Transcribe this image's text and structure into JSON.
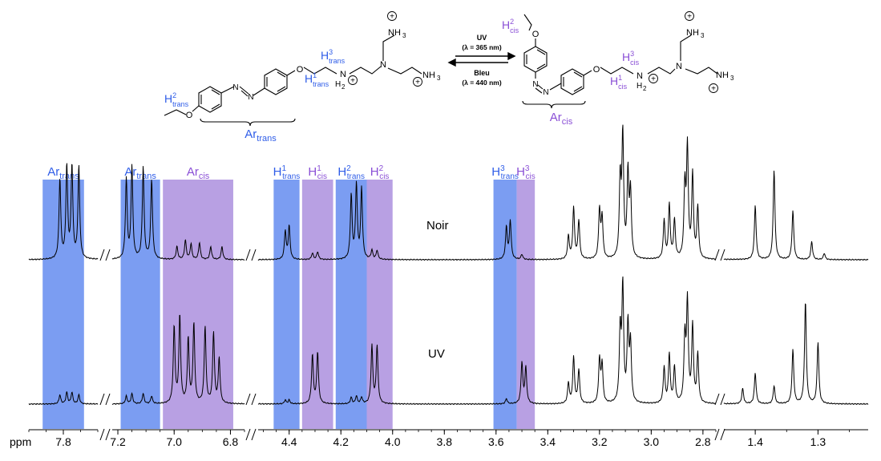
{
  "colors": {
    "trans": "#7b9df2",
    "cis": "#b8a0e3",
    "trans_text": "#2f5de8",
    "cis_text": "#8a4fd6",
    "spectrum": "#000000"
  },
  "scheme": {
    "arrow_top": "UV",
    "arrow_top_wavelength": "(λ = 365 nm)",
    "arrow_bottom": "Bleu",
    "arrow_bottom_wavelength": "(λ = 440 nm)",
    "trans_molecule": {
      "ar_base": "Ar",
      "ar_sub": "trans",
      "h1": {
        "base": "H",
        "sup": "1",
        "sub": "trans"
      },
      "h2": {
        "base": "H",
        "sup": "2",
        "sub": "trans"
      },
      "h3": {
        "base": "H",
        "sup": "3",
        "sub": "trans"
      },
      "nh2": "N",
      "nh2_h": "H",
      "nh2_sub": "2",
      "n": "N",
      "nh3_top": "NH",
      "nh3_bottom": "NH",
      "nh3_sub": "3",
      "o": "O",
      "azo": "N"
    },
    "cis_molecule": {
      "ar_base": "Ar",
      "ar_sub": "cis",
      "h1": {
        "base": "H",
        "sup": "1",
        "sub": "cis"
      },
      "h2": {
        "base": "H",
        "sup": "2",
        "sub": "cis"
      },
      "h3": {
        "base": "H",
        "sup": "3",
        "sub": "cis"
      },
      "nh2": "N",
      "nh2_h": "H",
      "nh2_sub": "2",
      "n": "N",
      "nh3_top": "NH",
      "nh3_bottom": "NH",
      "nh3_sub": "3",
      "o": "O",
      "azo": "N"
    },
    "plus": "+"
  },
  "chart_data": {
    "type": "line",
    "xlabel": "ppm",
    "x_reversed": true,
    "axis_breaks": [
      [
        7.7,
        7.2
      ],
      [
        6.75,
        4.5
      ],
      [
        2.75,
        1.45
      ]
    ],
    "x_tick_labels": [
      "7.8",
      "7.2",
      "7.0",
      "6.8",
      "4.4",
      "4.2",
      "4.0",
      "3.8",
      "3.6",
      "3.4",
      "3.2",
      "3.0",
      "2.8",
      "1.4",
      "1.3"
    ],
    "x_ticks": [
      7.8,
      7.2,
      7.0,
      6.8,
      4.4,
      4.2,
      4.0,
      3.8,
      3.6,
      3.4,
      3.2,
      3.0,
      2.8,
      1.4,
      1.3
    ],
    "series": [
      {
        "name": "Noir",
        "peaks": [
          {
            "ppm": 7.81,
            "h": 0.62
          },
          {
            "ppm": 7.79,
            "h": 0.72
          },
          {
            "ppm": 7.775,
            "h": 0.72
          },
          {
            "ppm": 7.755,
            "h": 0.72
          },
          {
            "ppm": 7.17,
            "h": 0.62
          },
          {
            "ppm": 7.15,
            "h": 0.72
          },
          {
            "ppm": 7.11,
            "h": 0.72
          },
          {
            "ppm": 7.08,
            "h": 0.62
          },
          {
            "ppm": 6.99,
            "h": 0.1
          },
          {
            "ppm": 6.96,
            "h": 0.15
          },
          {
            "ppm": 6.94,
            "h": 0.12
          },
          {
            "ppm": 6.91,
            "h": 0.13
          },
          {
            "ppm": 6.87,
            "h": 0.1
          },
          {
            "ppm": 6.83,
            "h": 0.1
          },
          {
            "ppm": 4.415,
            "h": 0.22
          },
          {
            "ppm": 4.4,
            "h": 0.26
          },
          {
            "ppm": 4.31,
            "h": 0.05
          },
          {
            "ppm": 4.29,
            "h": 0.06
          },
          {
            "ppm": 4.16,
            "h": 0.5
          },
          {
            "ppm": 4.14,
            "h": 0.58
          },
          {
            "ppm": 4.12,
            "h": 0.55
          },
          {
            "ppm": 4.08,
            "h": 0.07
          },
          {
            "ppm": 4.06,
            "h": 0.07
          },
          {
            "ppm": 3.56,
            "h": 0.25
          },
          {
            "ppm": 3.545,
            "h": 0.3
          },
          {
            "ppm": 3.5,
            "h": 0.04
          },
          {
            "ppm": 3.32,
            "h": 0.18
          },
          {
            "ppm": 3.3,
            "h": 0.4
          },
          {
            "ppm": 3.28,
            "h": 0.3
          },
          {
            "ppm": 3.2,
            "h": 0.38
          },
          {
            "ppm": 3.19,
            "h": 0.32
          },
          {
            "ppm": 3.12,
            "h": 0.6
          },
          {
            "ppm": 3.11,
            "h": 0.95
          },
          {
            "ppm": 3.09,
            "h": 0.65
          },
          {
            "ppm": 3.08,
            "h": 0.5
          },
          {
            "ppm": 2.95,
            "h": 0.3
          },
          {
            "ppm": 2.93,
            "h": 0.42
          },
          {
            "ppm": 2.91,
            "h": 0.3
          },
          {
            "ppm": 2.87,
            "h": 0.55
          },
          {
            "ppm": 2.86,
            "h": 0.85
          },
          {
            "ppm": 2.84,
            "h": 0.65
          },
          {
            "ppm": 2.82,
            "h": 0.4
          },
          {
            "ppm": 1.4,
            "h": 0.42
          },
          {
            "ppm": 1.37,
            "h": 0.7
          },
          {
            "ppm": 1.34,
            "h": 0.38
          },
          {
            "ppm": 1.31,
            "h": 0.14
          },
          {
            "ppm": 1.29,
            "h": 0.05
          }
        ]
      },
      {
        "name": "UV",
        "peaks": [
          {
            "ppm": 7.81,
            "h": 0.07
          },
          {
            "ppm": 7.79,
            "h": 0.09
          },
          {
            "ppm": 7.775,
            "h": 0.09
          },
          {
            "ppm": 7.755,
            "h": 0.07
          },
          {
            "ppm": 7.17,
            "h": 0.06
          },
          {
            "ppm": 7.15,
            "h": 0.08
          },
          {
            "ppm": 7.11,
            "h": 0.08
          },
          {
            "ppm": 7.08,
            "h": 0.06
          },
          {
            "ppm": 7.0,
            "h": 0.6
          },
          {
            "ppm": 6.98,
            "h": 0.68
          },
          {
            "ppm": 6.95,
            "h": 0.5
          },
          {
            "ppm": 6.93,
            "h": 0.62
          },
          {
            "ppm": 6.89,
            "h": 0.6
          },
          {
            "ppm": 6.86,
            "h": 0.55
          },
          {
            "ppm": 6.84,
            "h": 0.35
          },
          {
            "ppm": 4.415,
            "h": 0.03
          },
          {
            "ppm": 4.4,
            "h": 0.03
          },
          {
            "ppm": 4.31,
            "h": 0.38
          },
          {
            "ppm": 4.29,
            "h": 0.4
          },
          {
            "ppm": 4.16,
            "h": 0.05
          },
          {
            "ppm": 4.14,
            "h": 0.06
          },
          {
            "ppm": 4.12,
            "h": 0.05
          },
          {
            "ppm": 4.08,
            "h": 0.45
          },
          {
            "ppm": 4.06,
            "h": 0.45
          },
          {
            "ppm": 3.56,
            "h": 0.04
          },
          {
            "ppm": 3.5,
            "h": 0.32
          },
          {
            "ppm": 3.485,
            "h": 0.28
          },
          {
            "ppm": 3.32,
            "h": 0.16
          },
          {
            "ppm": 3.3,
            "h": 0.36
          },
          {
            "ppm": 3.28,
            "h": 0.26
          },
          {
            "ppm": 3.2,
            "h": 0.34
          },
          {
            "ppm": 3.19,
            "h": 0.3
          },
          {
            "ppm": 3.12,
            "h": 0.55
          },
          {
            "ppm": 3.11,
            "h": 0.9
          },
          {
            "ppm": 3.09,
            "h": 0.6
          },
          {
            "ppm": 3.08,
            "h": 0.45
          },
          {
            "ppm": 2.95,
            "h": 0.28
          },
          {
            "ppm": 2.93,
            "h": 0.38
          },
          {
            "ppm": 2.91,
            "h": 0.28
          },
          {
            "ppm": 2.87,
            "h": 0.5
          },
          {
            "ppm": 2.86,
            "h": 0.78
          },
          {
            "ppm": 2.84,
            "h": 0.6
          },
          {
            "ppm": 2.82,
            "h": 0.38
          },
          {
            "ppm": 1.42,
            "h": 0.12
          },
          {
            "ppm": 1.4,
            "h": 0.24
          },
          {
            "ppm": 1.37,
            "h": 0.14
          },
          {
            "ppm": 1.34,
            "h": 0.42
          },
          {
            "ppm": 1.32,
            "h": 0.8
          },
          {
            "ppm": 1.3,
            "h": 0.48
          }
        ]
      }
    ],
    "highlights": [
      {
        "label_base": "Ar",
        "label_sup": "",
        "label_sub": "trans",
        "kind": "trans",
        "from": 7.86,
        "to": 7.74
      },
      {
        "label_base": "Ar",
        "label_sup": "",
        "label_sub": "trans",
        "kind": "trans",
        "from": 7.19,
        "to": 7.05
      },
      {
        "label_base": "Ar",
        "label_sup": "",
        "label_sub": "cis",
        "kind": "cis",
        "from": 7.04,
        "to": 6.79
      },
      {
        "label_base": "H",
        "label_sup": "1",
        "label_sub": "trans",
        "kind": "trans",
        "from": 4.46,
        "to": 4.36
      },
      {
        "label_base": "H",
        "label_sup": "1",
        "label_sub": "cis",
        "kind": "cis",
        "from": 4.35,
        "to": 4.23
      },
      {
        "label_base": "H",
        "label_sup": "2",
        "label_sub": "trans",
        "kind": "trans",
        "from": 4.22,
        "to": 4.1
      },
      {
        "label_base": "H",
        "label_sup": "2",
        "label_sub": "cis",
        "kind": "cis",
        "from": 4.1,
        "to": 4.0
      },
      {
        "label_base": "H",
        "label_sup": "3",
        "label_sub": "trans",
        "kind": "trans",
        "from": 3.61,
        "to": 3.52
      },
      {
        "label_base": "H",
        "label_sup": "3",
        "label_sub": "cis",
        "kind": "cis",
        "from": 3.52,
        "to": 3.45
      }
    ],
    "spectrum_labels": [
      "Noir",
      "UV"
    ]
  }
}
